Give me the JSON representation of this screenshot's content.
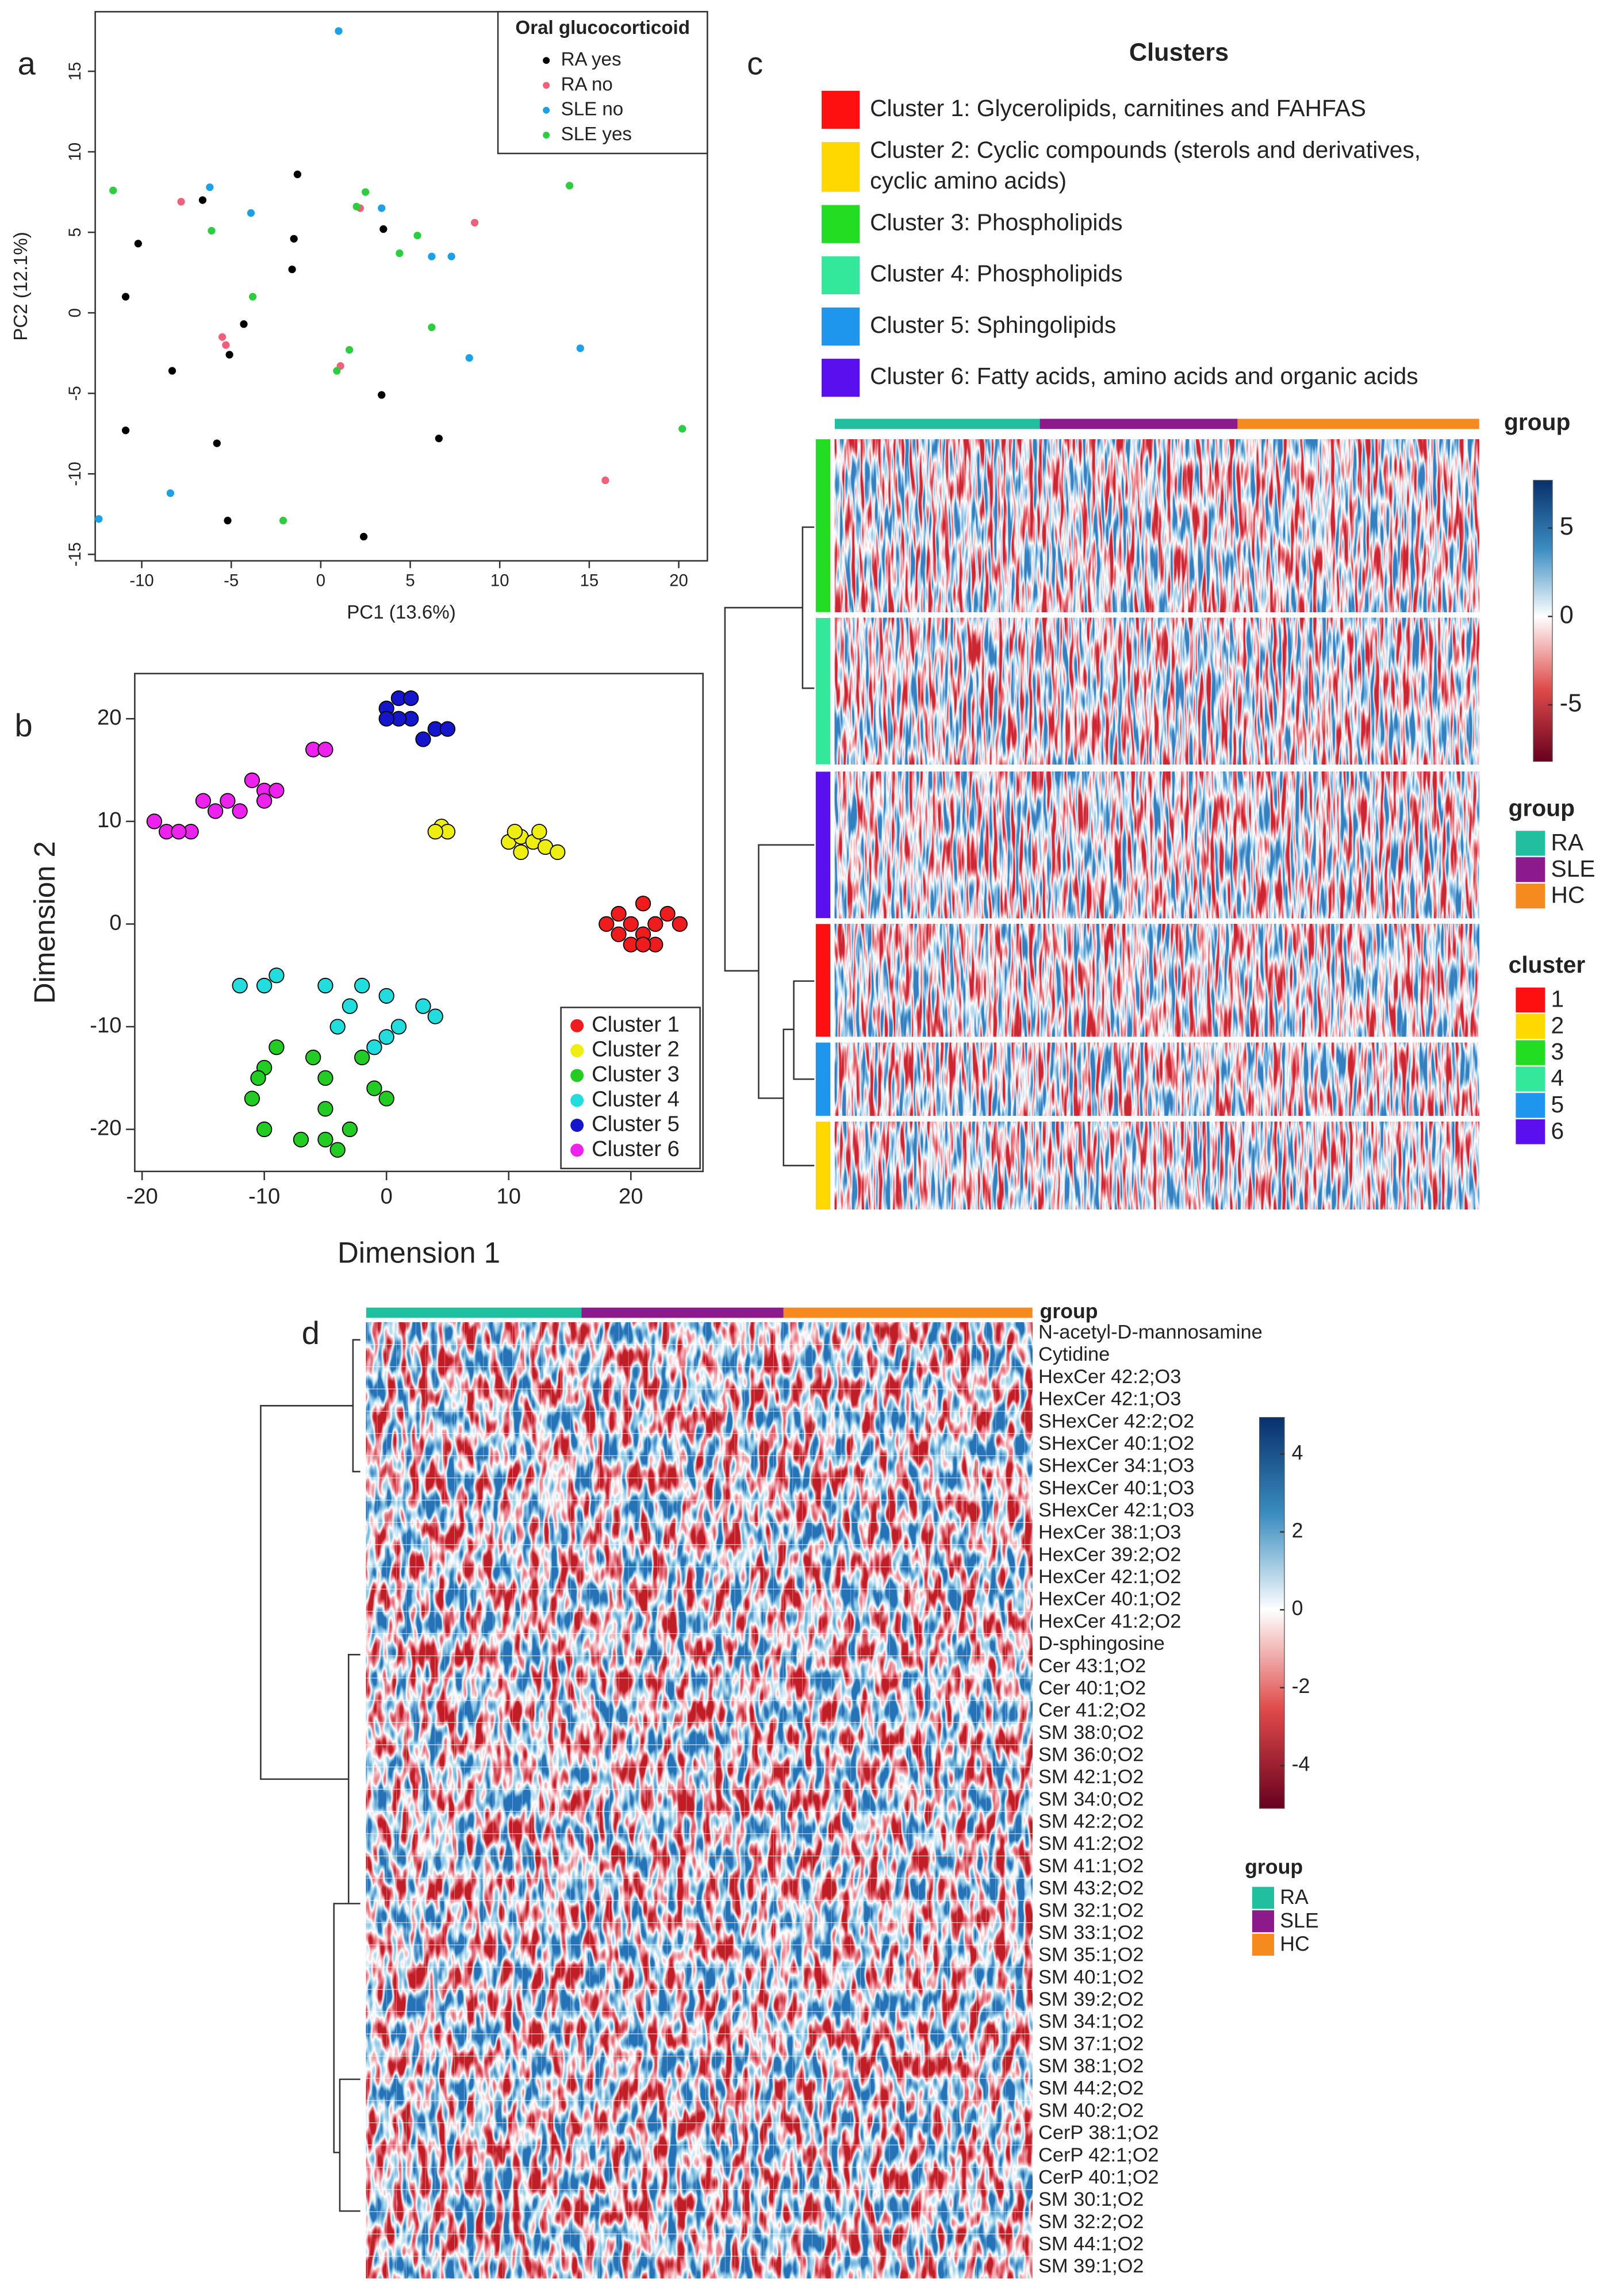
{
  "panel_labels": [
    "a",
    "b",
    "c",
    "d"
  ],
  "chart_data": [
    {
      "type": "scatter",
      "xlabel": "PC1 (13.6%)",
      "ylabel": "PC2 (12.1%)",
      "legend_title": "Oral glucocorticoid",
      "legend": "top-right",
      "xlim": [
        -12.6,
        21.6
      ],
      "ylim": [
        -15.4,
        18.7
      ],
      "xticks": [
        -10,
        -5,
        0,
        5,
        10,
        15,
        20
      ],
      "yticks": [
        -15,
        -10,
        -5,
        0,
        5,
        10,
        15
      ],
      "series": [
        {
          "name": "RA yes",
          "color": "#000000",
          "x": [
            -6.6,
            -10.2,
            -1.3,
            -10.9,
            -1.5,
            -1.6,
            -4.3,
            3.5,
            -8.3,
            -5.1,
            -10.9,
            -5.8,
            3.4,
            6.6,
            -5.2,
            2.4
          ],
          "values": [
            7.0,
            4.3,
            8.6,
            1.0,
            4.6,
            2.7,
            -0.7,
            5.2,
            -3.6,
            -2.6,
            -7.3,
            -8.1,
            -5.1,
            -7.8,
            -12.9,
            -13.9
          ]
        },
        {
          "name": "RA no",
          "color": "#f0607a",
          "x": [
            -7.8,
            2.2,
            8.6,
            -5.5,
            -5.3,
            1.1,
            15.9
          ],
          "values": [
            6.9,
            6.5,
            5.6,
            -1.5,
            -2.0,
            -3.3,
            -10.4
          ]
        },
        {
          "name": "SLE no",
          "color": "#1ea0e6",
          "x": [
            1.0,
            -6.2,
            -3.9,
            3.4,
            6.2,
            7.3,
            8.3,
            14.5,
            -8.4,
            -12.4
          ],
          "values": [
            17.5,
            7.8,
            6.2,
            6.5,
            3.5,
            3.5,
            -2.8,
            -2.2,
            -11.2,
            -12.8
          ]
        },
        {
          "name": "SLE yes",
          "color": "#2ecc40",
          "x": [
            -11.6,
            -6.1,
            -3.8,
            2.5,
            2.0,
            5.4,
            4.4,
            1.6,
            0.9,
            6.2,
            13.9,
            20.2,
            -2.1
          ],
          "values": [
            7.6,
            5.1,
            1.0,
            7.5,
            6.6,
            4.8,
            3.7,
            -2.3,
            -3.6,
            -0.9,
            7.9,
            -7.2,
            -12.9
          ]
        }
      ]
    },
    {
      "type": "scatter",
      "xlabel": "Dimension 1",
      "ylabel": "Dimension 2",
      "legend": "bottom-right",
      "xlim": [
        -20.6,
        25.9
      ],
      "ylim": [
        -24.1,
        24.4
      ],
      "xticks": [
        -20,
        -10,
        0,
        10,
        20
      ],
      "yticks": [
        -20,
        -10,
        0,
        10,
        20
      ],
      "series": [
        {
          "name": "Cluster 1",
          "color": "#ee1c1c",
          "x": [
            19,
            20,
            21,
            22,
            20,
            18,
            21,
            23,
            24,
            19,
            22,
            21
          ],
          "values": [
            1,
            0,
            -1,
            -2,
            -2,
            0,
            2,
            1,
            0,
            -1,
            0,
            -2
          ]
        },
        {
          "name": "Cluster 2",
          "color": "#eeee10",
          "x": [
            4.5,
            5,
            4,
            10,
            11,
            12,
            13,
            11,
            10.5,
            12.5,
            14
          ],
          "values": [
            9.5,
            9,
            9,
            8,
            8.5,
            8,
            7.5,
            7,
            9,
            9,
            7
          ]
        },
        {
          "name": "Cluster 3",
          "color": "#22cc22",
          "x": [
            -10,
            -5,
            -2,
            0,
            -10,
            -5,
            -4,
            -11,
            -9,
            -6,
            -3,
            -1,
            -5,
            -7,
            -10.5
          ],
          "values": [
            -14,
            -15,
            -13,
            -17,
            -20,
            -21,
            -22,
            -17,
            -12,
            -13,
            -20,
            -16,
            -18,
            -21,
            -15
          ]
        },
        {
          "name": "Cluster 4",
          "color": "#22dddd",
          "x": [
            -10,
            -12,
            -9,
            -5,
            -3,
            -4,
            0,
            1,
            -1,
            3,
            4,
            -2,
            0
          ],
          "values": [
            -6,
            -6,
            -5,
            -6,
            -8,
            -10,
            -7,
            -10,
            -12,
            -8,
            -9,
            -6,
            -11
          ]
        },
        {
          "name": "Cluster 5",
          "color": "#1515cc",
          "x": [
            0,
            1,
            2,
            1,
            4,
            3,
            5,
            0,
            2
          ],
          "values": [
            21,
            22,
            20,
            20,
            19,
            18,
            19,
            20,
            22
          ]
        },
        {
          "name": "Cluster 6",
          "color": "#ee22ee",
          "x": [
            -18,
            -19,
            -16,
            -15,
            -13,
            -11,
            -10,
            -9,
            -12,
            -14,
            -6,
            -5,
            -10,
            -17
          ],
          "values": [
            9,
            10,
            9,
            12,
            12,
            14,
            13,
            13,
            11,
            11,
            17,
            17,
            12,
            9
          ]
        }
      ]
    },
    {
      "type": "heatmap",
      "title": "Clusters",
      "descriptions": [
        {
          "lines": [
            "Cluster 1: Glycerolipids, carnitines and FAHFAS"
          ],
          "color": "#ff1010"
        },
        {
          "lines": [
            "Cluster 2: Cyclic compounds (sterols and derivatives,",
            "cyclic amino acids)"
          ],
          "color": "#ffd800"
        },
        {
          "lines": [
            "Cluster 3: Phospholipids"
          ],
          "color": "#22dd22"
        },
        {
          "lines": [
            "Cluster 4: Phospholipids"
          ],
          "color": "#33e89a"
        },
        {
          "lines": [
            "Cluster 5: Sphingolipids"
          ],
          "color": "#1e96ee"
        },
        {
          "lines": [
            "Cluster 6: Fatty acids, amino acids and organic acids"
          ],
          "color": "#5a10ee"
        }
      ],
      "annotation_title": "group",
      "group_legend_title": "group",
      "cluster_legend_title": "cluster",
      "groups": [
        {
          "name": "RA",
          "color": "#1fbfa0"
        },
        {
          "name": "SLE",
          "color": "#8c1a8c"
        },
        {
          "name": "HC",
          "color": "#f58a1e"
        }
      ],
      "clusters": [
        {
          "name": "1",
          "color": "#ff1010"
        },
        {
          "name": "2",
          "color": "#ffd800"
        },
        {
          "name": "3",
          "color": "#22dd22"
        },
        {
          "name": "4",
          "color": "#33e89a"
        },
        {
          "name": "5",
          "color": "#1e96ee"
        },
        {
          "name": "6",
          "color": "#5a10ee"
        }
      ],
      "colorbar": {
        "lim": [
          -8.2,
          7.7
        ],
        "ticks": [
          5,
          0,
          -5
        ]
      }
    },
    {
      "type": "heatmap",
      "annotation_title": "group",
      "group_legend_title": "group",
      "groups": [
        {
          "name": "RA",
          "color": "#1fbfa0"
        },
        {
          "name": "SLE",
          "color": "#8c1a8c"
        },
        {
          "name": "HC",
          "color": "#f58a1e"
        }
      ],
      "rows": [
        "N-acetyl-D-mannosamine",
        "Cytidine",
        "HexCer 42:2;O3",
        "HexCer 42:1;O3",
        "SHexCer 42:2;O2",
        "SHexCer 40:1;O2",
        "SHexCer 34:1;O3",
        "SHexCer 40:1;O3",
        "SHexCer 42:1;O3",
        "HexCer 38:1;O3",
        "HexCer 39:2;O2",
        "HexCer 42:1;O2",
        "HexCer 40:1;O2",
        "HexCer 41:2;O2",
        "D-sphingosine",
        "Cer 43:1;O2",
        "Cer 40:1;O2",
        "Cer 41:2;O2",
        "SM 38:0;O2",
        "SM 36:0;O2",
        "SM 42:1;O2",
        "SM 34:0;O2",
        "SM 42:2;O2",
        "SM 41:2;O2",
        "SM 41:1;O2",
        "SM 43:2;O2",
        "SM 32:1;O2",
        "SM 33:1;O2",
        "SM 35:1;O2",
        "SM 40:1;O2",
        "SM 39:2;O2",
        "SM 34:1;O2",
        "SM 37:1;O2",
        "SM 38:1;O2",
        "SM 44:2;O2",
        "SM 40:2;O2",
        "CerP 38:1;O2",
        "CerP 42:1;O2",
        "CerP 40:1;O2",
        "SM 30:1;O2",
        "SM 32:2;O2",
        "SM 44:1;O2",
        "SM 39:1;O2"
      ],
      "colorbar": {
        "lim": [
          -5.1,
          4.94
        ],
        "ticks": [
          4,
          2,
          0,
          -2,
          -4
        ]
      }
    }
  ]
}
